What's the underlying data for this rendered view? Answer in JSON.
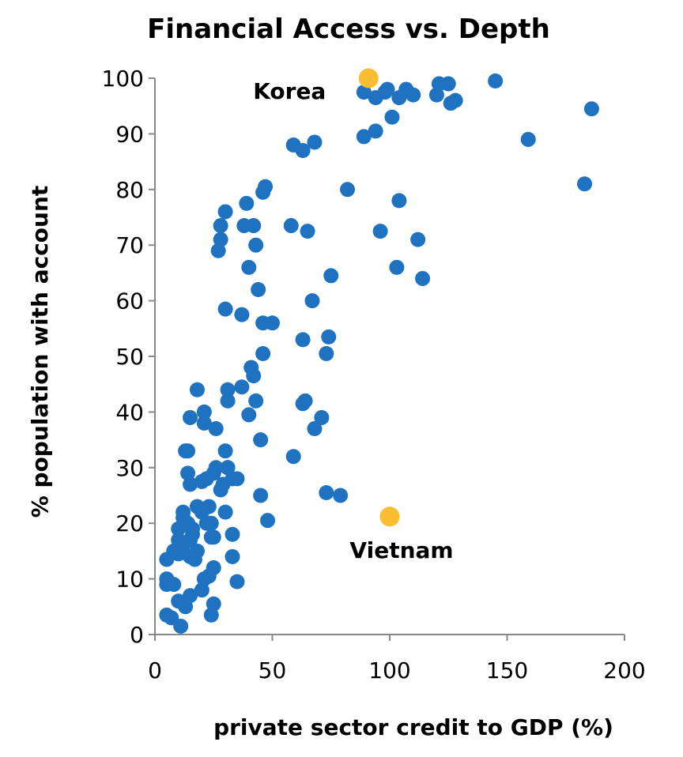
{
  "chart_data": {
    "type": "scatter",
    "title": "Financial Access vs. Depth",
    "xlabel": "private sector credit to GDP (%)",
    "ylabel": "% population with account",
    "xlim": [
      0,
      200
    ],
    "ylim": [
      0,
      100
    ],
    "x_ticks": [
      "0",
      "50",
      "100",
      "150",
      "200"
    ],
    "y_ticks": [
      "0",
      "10",
      "20",
      "30",
      "40",
      "50",
      "60",
      "70",
      "80",
      "90",
      "100"
    ],
    "grid": false,
    "colors": {
      "points": "#1f72c0",
      "highlight": "#fbbd32"
    },
    "series": [
      {
        "points": [
          [
            5,
            3.5
          ],
          [
            7,
            3
          ],
          [
            11,
            1.5
          ],
          [
            13,
            5
          ],
          [
            10,
            6
          ],
          [
            15,
            7
          ],
          [
            20,
            8
          ],
          [
            24,
            3.5
          ],
          [
            25,
            5.5
          ],
          [
            5,
            10
          ],
          [
            5,
            9
          ],
          [
            8,
            9
          ],
          [
            10,
            14.5
          ],
          [
            12,
            16
          ],
          [
            15,
            14
          ],
          [
            17,
            13.5
          ],
          [
            18,
            15
          ],
          [
            21,
            10
          ],
          [
            23,
            10.5
          ],
          [
            25,
            12
          ],
          [
            35,
            9.5
          ],
          [
            5,
            13.5
          ],
          [
            8,
            15
          ],
          [
            10,
            19
          ],
          [
            12,
            21
          ],
          [
            14,
            20
          ],
          [
            16,
            18
          ],
          [
            15,
            17
          ],
          [
            16,
            19
          ],
          [
            20,
            22
          ],
          [
            22,
            20
          ],
          [
            24,
            17.5
          ],
          [
            25,
            17.5
          ],
          [
            23,
            23
          ],
          [
            24,
            20
          ],
          [
            30,
            22
          ],
          [
            33,
            18
          ],
          [
            33,
            14
          ],
          [
            10,
            17
          ],
          [
            12,
            22
          ],
          [
            18,
            23
          ],
          [
            22,
            28
          ],
          [
            20,
            27.5
          ],
          [
            15,
            27
          ],
          [
            14,
            29
          ],
          [
            13,
            33
          ],
          [
            14,
            33
          ],
          [
            25,
            29
          ],
          [
            26,
            30
          ],
          [
            29,
            27
          ],
          [
            31,
            30
          ],
          [
            33,
            28
          ],
          [
            35,
            28
          ],
          [
            30,
            33
          ],
          [
            31,
            30
          ],
          [
            28,
            26
          ],
          [
            45,
            25
          ],
          [
            48,
            20.5
          ],
          [
            15,
            39
          ],
          [
            21,
            38
          ],
          [
            21,
            40
          ],
          [
            26,
            37
          ],
          [
            31,
            42
          ],
          [
            31,
            44
          ],
          [
            18,
            44
          ],
          [
            40,
            39.5
          ],
          [
            45,
            35
          ],
          [
            59,
            32
          ],
          [
            37,
            44.5
          ],
          [
            42,
            46.5
          ],
          [
            41,
            48
          ],
          [
            46,
            50.5
          ],
          [
            43,
            42
          ],
          [
            46,
            56
          ],
          [
            50,
            56
          ],
          [
            63,
            41.5
          ],
          [
            64,
            42
          ],
          [
            68,
            37
          ],
          [
            71,
            39
          ],
          [
            74,
            53.5
          ],
          [
            73,
            50.5
          ],
          [
            63,
            53
          ],
          [
            73,
            25.5
          ],
          [
            79,
            25
          ],
          [
            30,
            58.5
          ],
          [
            37,
            57.5
          ],
          [
            44,
            62
          ],
          [
            40,
            66
          ],
          [
            67,
            60
          ],
          [
            75,
            64.5
          ],
          [
            27,
            69
          ],
          [
            28,
            71
          ],
          [
            28,
            73.5
          ],
          [
            30,
            76
          ],
          [
            39,
            77.5
          ],
          [
            38,
            73.5
          ],
          [
            42,
            73.5
          ],
          [
            43,
            70
          ],
          [
            46,
            79.5
          ],
          [
            47,
            80.5
          ],
          [
            58,
            73.5
          ],
          [
            65,
            72.5
          ],
          [
            82,
            80
          ],
          [
            96,
            72.5
          ],
          [
            104,
            78
          ],
          [
            103,
            66
          ],
          [
            112,
            71
          ],
          [
            114,
            64
          ],
          [
            59,
            88
          ],
          [
            63,
            87
          ],
          [
            68,
            88.5
          ],
          [
            89,
            89.5
          ],
          [
            94,
            90.5
          ],
          [
            101,
            93
          ],
          [
            159,
            89
          ],
          [
            183,
            81
          ],
          [
            186,
            94.5
          ],
          [
            89,
            97.5
          ],
          [
            94,
            96.5
          ],
          [
            98,
            97.5
          ],
          [
            99,
            98
          ],
          [
            104,
            96.5
          ],
          [
            107,
            98
          ],
          [
            110,
            97
          ],
          [
            120,
            97
          ],
          [
            121,
            99
          ],
          [
            125,
            99
          ],
          [
            126,
            95.5
          ],
          [
            128,
            96
          ],
          [
            145,
            99.5
          ]
        ]
      },
      {
        "name": "Korea",
        "points": [
          [
            91,
            100
          ]
        ]
      },
      {
        "name": "Vietnam",
        "points": [
          [
            100,
            21.2
          ]
        ]
      }
    ]
  }
}
